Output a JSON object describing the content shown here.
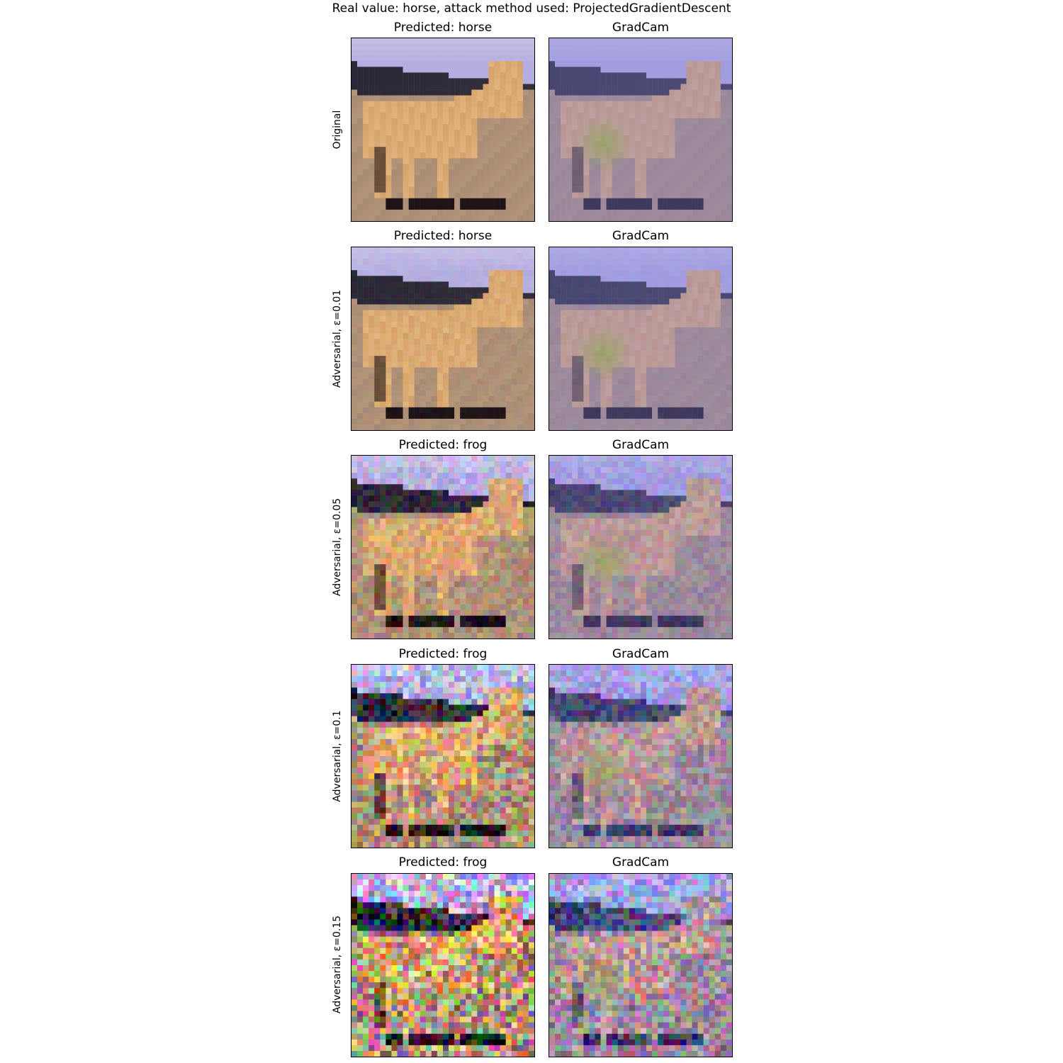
{
  "figure": {
    "suptitle": "Real value: horse, attack method used: ProjectedGradientDescent",
    "rows": [
      {
        "row_label": "Original",
        "pred_title": "Predicted: horse",
        "cam_title": "GradCam",
        "noise_level": 0.0
      },
      {
        "row_label": "Adversarial, ε=0.01",
        "pred_title": "Predicted: horse",
        "cam_title": "GradCam",
        "noise_level": 0.01
      },
      {
        "row_label": "Adversarial, ε=0.05",
        "pred_title": "Predicted: frog",
        "cam_title": "GradCam",
        "noise_level": 0.05
      },
      {
        "row_label": "Adversarial, ε=0.1",
        "pred_title": "Predicted: frog",
        "cam_title": "GradCam",
        "noise_level": 0.1
      },
      {
        "row_label": "Adversarial, ε=0.15",
        "pred_title": "Predicted: frog",
        "cam_title": "GradCam",
        "noise_level": 0.15
      }
    ]
  },
  "colors": {
    "sky": "#b5aee0",
    "hill": "#2a2836",
    "horse": "#d6a26a",
    "ground": "#a98c74",
    "fence": "#1e1418",
    "cam_tint": "#7d7ee0"
  }
}
